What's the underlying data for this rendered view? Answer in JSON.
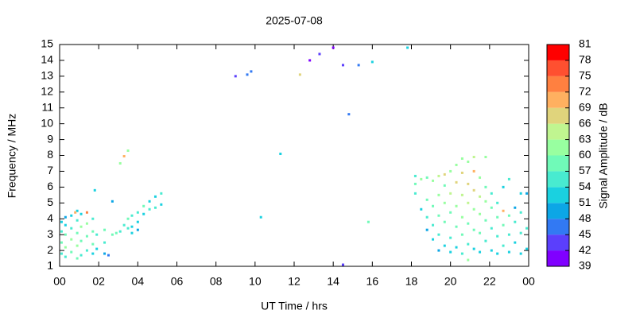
{
  "chart_data": {
    "type": "scatter",
    "title": "2025-07-08",
    "x_label": "UT Time / hrs",
    "y_label": "Frequency / MHz",
    "colorbar_label": "Signal Amplitude / dB",
    "xlim": [
      0,
      24
    ],
    "xticks": [
      {
        "value": 0,
        "label": "00"
      },
      {
        "value": 2,
        "label": "02"
      },
      {
        "value": 4,
        "label": "04"
      },
      {
        "value": 6,
        "label": "06"
      },
      {
        "value": 8,
        "label": "08"
      },
      10,
      12,
      14,
      16,
      18,
      20,
      22,
      {
        "value": 24,
        "label": "00"
      }
    ],
    "ylim": [
      1,
      15
    ],
    "yticks": [
      1,
      2,
      3,
      4,
      5,
      6,
      7,
      8,
      9,
      10,
      11,
      12,
      13,
      14,
      15
    ],
    "clim": [
      39,
      81
    ],
    "cticks": [
      39,
      42,
      45,
      48,
      51,
      54,
      57,
      60,
      63,
      66,
      69,
      72,
      75,
      78,
      81
    ],
    "colors": [
      "#8000ff",
      "#5b3ffc",
      "#3279f3",
      "#0ca6e6",
      "#1ad1e0",
      "#48ebd0",
      "#70fab8",
      "#98ffa0",
      "#c0f590",
      "#e0d47c",
      "#ffb060",
      "#ff8040",
      "#ff5030",
      "#ff0000"
    ],
    "x": [
      0.1,
      0.1,
      0.1,
      0.1,
      0.3,
      0.3,
      0.3,
      0.3,
      0.3,
      0.6,
      0.6,
      0.6,
      0.6,
      0.9,
      0.9,
      0.9,
      0.9,
      0.9,
      1.1,
      1.1,
      1.1,
      1.1,
      1.4,
      1.4,
      1.4,
      1.4,
      1.7,
      1.7,
      1.7,
      1.7,
      1.9,
      1.9,
      2.3,
      2.3,
      2.3,
      2.5,
      2.7,
      2.7,
      2.9,
      3.1,
      3.1,
      3.3,
      3.3,
      3.5,
      3.5,
      3.5,
      3.7,
      3.7,
      3.7,
      4.0,
      4.0,
      4.0,
      4.3,
      4.3,
      4.6,
      4.6,
      4.9,
      4.9,
      5.2,
      5.2,
      1.8,
      0.8,
      9.0,
      9.6,
      9.8,
      10.3,
      11.3,
      12.3,
      12.8,
      13.3,
      14.0,
      14.5,
      14.8,
      15.3,
      16.0,
      15.8,
      17.8,
      14.5,
      18.2,
      18.2,
      18.2,
      18.5,
      18.5,
      18.8,
      18.8,
      18.8,
      18.8,
      19.1,
      19.1,
      19.1,
      19.1,
      19.4,
      19.4,
      19.4,
      19.4,
      19.4,
      19.7,
      19.7,
      19.7,
      19.7,
      19.7,
      20.0,
      20.0,
      20.0,
      20.0,
      20.0,
      20.3,
      20.3,
      20.3,
      20.3,
      20.3,
      20.6,
      20.6,
      20.6,
      20.6,
      20.6,
      20.6,
      20.9,
      20.9,
      20.9,
      20.9,
      20.9,
      20.9,
      21.2,
      21.2,
      21.2,
      21.2,
      21.2,
      21.2,
      21.5,
      21.5,
      21.5,
      21.5,
      21.5,
      21.8,
      21.8,
      21.8,
      21.8,
      21.8,
      22.1,
      22.1,
      22.1,
      22.1,
      22.4,
      22.4,
      22.4,
      22.4,
      22.7,
      22.7,
      22.7,
      22.7,
      23.0,
      23.0,
      23.0,
      23.0,
      23.3,
      23.3,
      23.3,
      23.6,
      23.6,
      23.6,
      23.6,
      23.9,
      23.9,
      23.9
    ],
    "y": [
      1.8,
      2.5,
      3.2,
      3.8,
      1.6,
      2.2,
      3.0,
      3.6,
      4.1,
      1.9,
      2.7,
      3.4,
      4.2,
      1.5,
      2.3,
      3.1,
      3.9,
      4.5,
      1.7,
      2.6,
      3.5,
      4.3,
      2.0,
      2.9,
      3.7,
      4.4,
      1.8,
      2.4,
      3.2,
      4.0,
      2.1,
      3.0,
      1.8,
      2.5,
      3.3,
      1.7,
      3.0,
      5.1,
      3.1,
      3.2,
      7.5,
      3.6,
      7.95,
      3.4,
      4.0,
      8.3,
      3.5,
      4.2,
      3.1,
      3.8,
      4.4,
      3.3,
      4.3,
      4.8,
      4.6,
      5.1,
      4.7,
      5.4,
      4.9,
      5.6,
      5.8,
      4.4,
      13.0,
      13.1,
      13.3,
      4.1,
      8.1,
      13.1,
      14.0,
      14.4,
      14.8,
      13.7,
      10.6,
      13.7,
      13.9,
      3.8,
      14.8,
      1.1,
      6.7,
      6.2,
      5.6,
      4.6,
      6.5,
      3.3,
      4.1,
      5.2,
      6.6,
      2.7,
      3.6,
      4.8,
      6.4,
      2.0,
      3.0,
      4.2,
      5.5,
      6.7,
      2.3,
      3.8,
      5.0,
      6.1,
      6.8,
      1.9,
      2.8,
      4.4,
      5.6,
      7.0,
      2.2,
      3.5,
      4.8,
      6.3,
      7.4,
      1.8,
      3.0,
      4.1,
      5.5,
      6.9,
      7.8,
      2.4,
      3.7,
      5.0,
      6.2,
      7.6,
      1.4,
      2.1,
      3.3,
      4.6,
      5.8,
      7.0,
      7.9,
      1.9,
      3.1,
      4.3,
      5.4,
      6.6,
      2.6,
      3.9,
      5.1,
      6.0,
      7.9,
      2.0,
      3.4,
      4.7,
      5.6,
      1.8,
      2.9,
      4.1,
      5.0,
      2.3,
      3.6,
      4.5,
      6.0,
      1.9,
      3.0,
      4.2,
      6.5,
      2.5,
      3.8,
      4.7,
      1.8,
      3.1,
      4.4,
      5.6,
      2.1,
      3.4,
      5.6
    ],
    "values": [
      55,
      57,
      54,
      52,
      56,
      60,
      58,
      53,
      50,
      57,
      61,
      55,
      52,
      58,
      62,
      57,
      54,
      51,
      56,
      59,
      60,
      53,
      55,
      58,
      61,
      72,
      53,
      57,
      59,
      55,
      52,
      56,
      49,
      55,
      57,
      47,
      58,
      50,
      57,
      56,
      60,
      55,
      70,
      54,
      57,
      61,
      53,
      56,
      52,
      52,
      56,
      50,
      53,
      57,
      55,
      53,
      56,
      52,
      52,
      54,
      53,
      70,
      44,
      45,
      46,
      52,
      52,
      66,
      41,
      42,
      41,
      42,
      46,
      45,
      52,
      58,
      53,
      43,
      56,
      58,
      55,
      52,
      60,
      50,
      55,
      57,
      59,
      52,
      56,
      58,
      61,
      50,
      54,
      57,
      60,
      63,
      53,
      58,
      62,
      57,
      67,
      51,
      55,
      59,
      63,
      60,
      52,
      57,
      61,
      66,
      62,
      54,
      58,
      60,
      64,
      68,
      61,
      56,
      59,
      63,
      67,
      62,
      60,
      53,
      58,
      62,
      66,
      71,
      64,
      52,
      57,
      60,
      64,
      61,
      54,
      58,
      61,
      57,
      62,
      53,
      56,
      59,
      55,
      52,
      55,
      58,
      54,
      54,
      57,
      70,
      52,
      52,
      55,
      57,
      56,
      51,
      54,
      50,
      53,
      56,
      55,
      51,
      52,
      55,
      50
    ]
  }
}
